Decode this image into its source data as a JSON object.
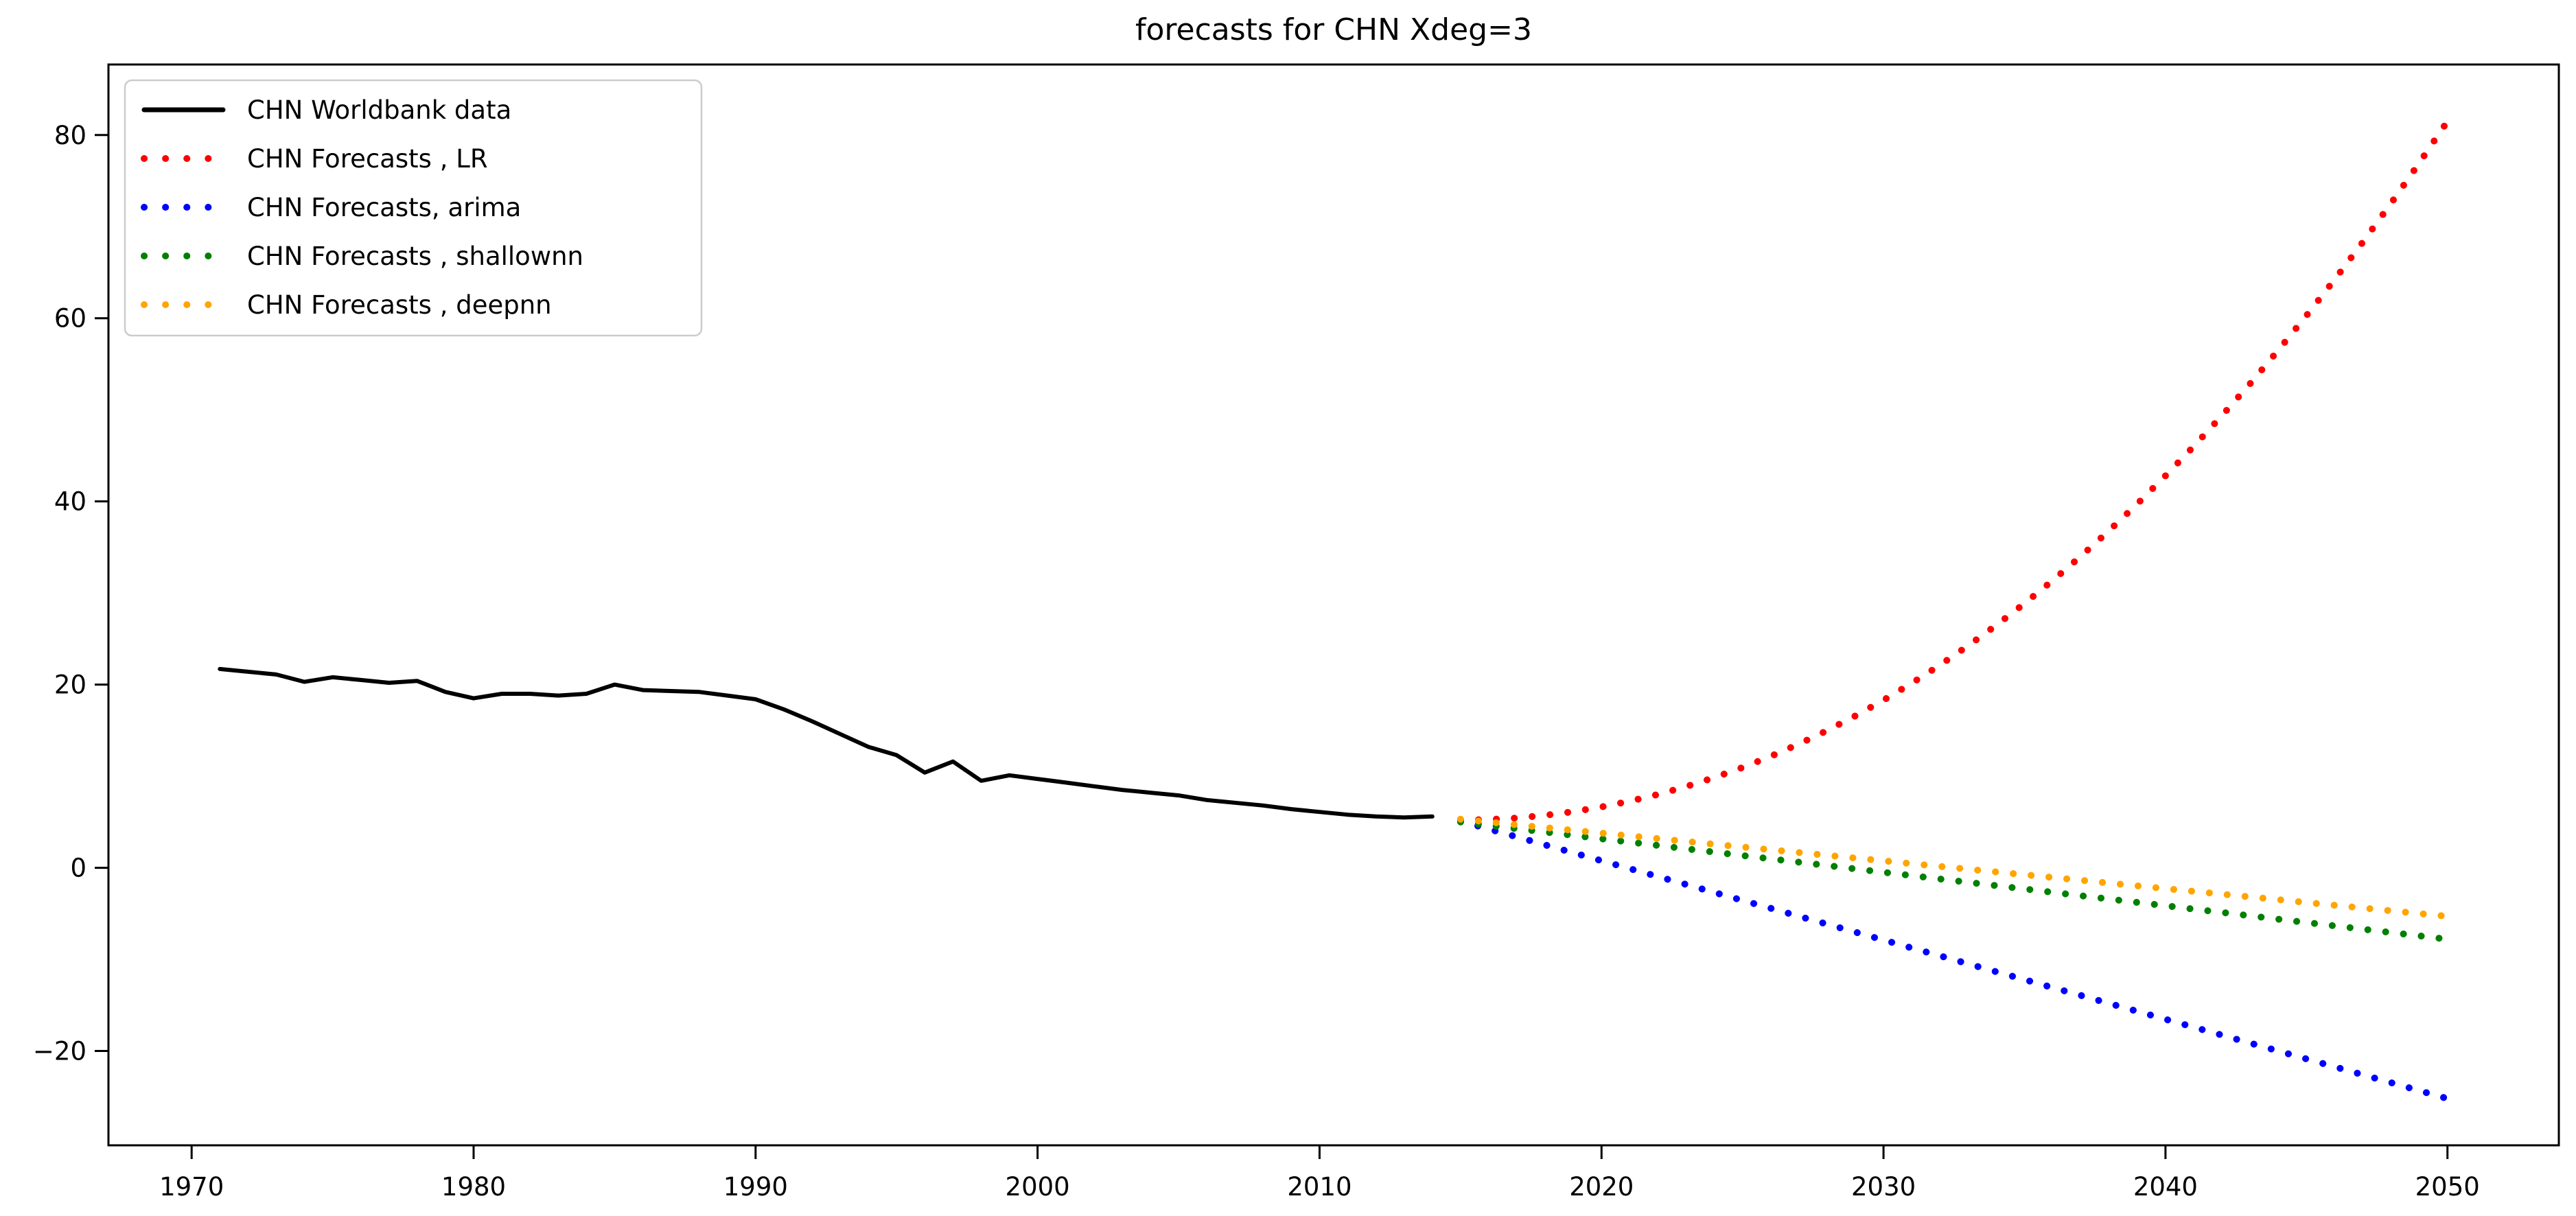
{
  "figure": {
    "title": "forecasts for CHN  Xdeg=3"
  },
  "chart_data": {
    "type": "line",
    "title": "forecasts for CHN  Xdeg=3",
    "xlabel": "",
    "ylabel": "",
    "xlim": [
      1967.05,
      2053.95
    ],
    "ylim": [
      -30.3,
      87.7
    ],
    "grid": false,
    "legend_position": "upper left",
    "x_ticks": [
      1970,
      1980,
      1990,
      2000,
      2010,
      2020,
      2030,
      2040,
      2050
    ],
    "x_tick_labels": [
      "1970",
      "1980",
      "1990",
      "2000",
      "2010",
      "2020",
      "2030",
      "2040",
      "2050"
    ],
    "y_ticks": [
      -20,
      0,
      20,
      40,
      60,
      80
    ],
    "y_tick_labels": [
      "−20",
      "0",
      "20",
      "40",
      "60",
      "80"
    ],
    "series": [
      {
        "name": "CHN Worldbank data",
        "color": "#000000",
        "style": "solid",
        "x": [
          1971,
          1972,
          1973,
          1974,
          1975,
          1976,
          1977,
          1978,
          1979,
          1980,
          1981,
          1982,
          1983,
          1984,
          1985,
          1986,
          1987,
          1988,
          1989,
          1990,
          1991,
          1992,
          1993,
          1994,
          1995,
          1996,
          1997,
          1998,
          1999,
          2000,
          2001,
          2002,
          2003,
          2004,
          2005,
          2006,
          2007,
          2008,
          2009,
          2010,
          2011,
          2012,
          2013,
          2014
        ],
        "values": [
          21.7,
          21.4,
          21.1,
          20.3,
          20.8,
          20.5,
          20.2,
          20.4,
          19.2,
          18.5,
          19.0,
          19.0,
          18.8,
          19.0,
          20.0,
          19.4,
          19.3,
          19.2,
          18.8,
          18.4,
          17.3,
          16.0,
          14.6,
          13.2,
          12.3,
          10.4,
          11.6,
          9.5,
          10.1,
          9.7,
          9.3,
          8.9,
          8.5,
          8.2,
          7.9,
          7.4,
          7.1,
          6.8,
          6.4,
          6.1,
          5.8,
          5.6,
          5.5,
          5.6
        ]
      },
      {
        "name": "CHN Forecasts , LR",
        "color": "#ff0000",
        "style": "dotted",
        "x": [
          2015,
          2016,
          2017,
          2018,
          2019,
          2020,
          2021,
          2022,
          2023,
          2024,
          2025,
          2026,
          2027,
          2028,
          2029,
          2030,
          2031,
          2032,
          2033,
          2034,
          2035,
          2036,
          2037,
          2038,
          2039,
          2040,
          2041,
          2042,
          2043,
          2044,
          2045,
          2046,
          2047,
          2048,
          2049,
          2050
        ],
        "values": [
          5.2,
          5.27,
          5.44,
          5.73,
          6.13,
          6.64,
          7.27,
          8.01,
          8.87,
          9.85,
          10.95,
          12.17,
          13.51,
          14.98,
          16.58,
          18.3,
          20.15,
          22.13,
          24.24,
          26.48,
          28.86,
          31.37,
          34.02,
          36.81,
          39.73,
          42.8,
          46.01,
          49.36,
          52.85,
          56.5,
          60.29,
          64.23,
          68.32,
          72.56,
          76.95,
          81.5
        ]
      },
      {
        "name": "CHN Forecasts, arima",
        "color": "#0000ff",
        "style": "dotted",
        "x": [
          2015,
          2016,
          2017,
          2018,
          2019,
          2020,
          2021,
          2022,
          2023,
          2024,
          2025,
          2026,
          2027,
          2028,
          2029,
          2030,
          2031,
          2032,
          2033,
          2034,
          2035,
          2036,
          2037,
          2038,
          2039,
          2040,
          2041,
          2042,
          2043,
          2044,
          2045,
          2046,
          2047,
          2048,
          2049,
          2050
        ],
        "values": [
          5.1,
          4.23,
          3.37,
          2.5,
          1.64,
          0.77,
          -0.09,
          -0.96,
          -1.82,
          -2.69,
          -3.56,
          -4.42,
          -5.29,
          -6.15,
          -7.02,
          -7.88,
          -8.75,
          -9.61,
          -10.48,
          -11.35,
          -12.21,
          -13.08,
          -13.94,
          -14.81,
          -15.67,
          -16.54,
          -17.4,
          -18.27,
          -19.14,
          -20.0,
          -20.87,
          -21.73,
          -22.6,
          -23.46,
          -24.33,
          -25.2
        ]
      },
      {
        "name": "CHN Forecasts , shallownn",
        "color": "#008000",
        "style": "dotted",
        "x": [
          2015,
          2016,
          2017,
          2018,
          2019,
          2020,
          2021,
          2022,
          2023,
          2024,
          2025,
          2026,
          2027,
          2028,
          2029,
          2030,
          2031,
          2032,
          2033,
          2034,
          2035,
          2036,
          2037,
          2038,
          2039,
          2040,
          2041,
          2042,
          2043,
          2044,
          2045,
          2046,
          2047,
          2048,
          2049,
          2050
        ],
        "values": [
          5.0,
          4.63,
          4.27,
          3.9,
          3.54,
          3.17,
          2.81,
          2.44,
          2.07,
          1.71,
          1.34,
          0.98,
          0.61,
          0.25,
          -0.12,
          -0.49,
          -0.85,
          -1.22,
          -1.58,
          -1.95,
          -2.31,
          -2.68,
          -3.05,
          -3.41,
          -3.78,
          -4.14,
          -4.51,
          -4.87,
          -5.24,
          -5.61,
          -5.97,
          -6.34,
          -6.7,
          -7.07,
          -7.43,
          -7.8
        ]
      },
      {
        "name": "CHN Forecasts , deepnn",
        "color": "#ffa500",
        "style": "dotted",
        "x": [
          2015,
          2016,
          2017,
          2018,
          2019,
          2020,
          2021,
          2022,
          2023,
          2024,
          2025,
          2026,
          2027,
          2028,
          2029,
          2030,
          2031,
          2032,
          2033,
          2034,
          2035,
          2036,
          2037,
          2038,
          2039,
          2040,
          2041,
          2042,
          2043,
          2044,
          2045,
          2046,
          2047,
          2048,
          2049,
          2050
        ],
        "values": [
          5.3,
          5.0,
          4.69,
          4.39,
          4.09,
          3.79,
          3.48,
          3.18,
          2.88,
          2.57,
          2.27,
          1.97,
          1.67,
          1.36,
          1.06,
          0.76,
          0.45,
          0.15,
          -0.15,
          -0.45,
          -0.76,
          -1.06,
          -1.36,
          -1.67,
          -1.97,
          -2.27,
          -2.57,
          -2.88,
          -3.18,
          -3.48,
          -3.79,
          -4.09,
          -4.39,
          -4.69,
          -5.0,
          -5.3
        ]
      }
    ]
  },
  "legend": {
    "entries": [
      {
        "label": "CHN Worldbank data",
        "color": "#000000",
        "style": "solid"
      },
      {
        "label": "CHN Forecasts , LR",
        "color": "#ff0000",
        "style": "dotted"
      },
      {
        "label": "CHN Forecasts, arima",
        "color": "#0000ff",
        "style": "dotted"
      },
      {
        "label": "CHN Forecasts , shallownn",
        "color": "#008000",
        "style": "dotted"
      },
      {
        "label": "CHN Forecasts , deepnn",
        "color": "#ffa500",
        "style": "dotted"
      }
    ]
  }
}
